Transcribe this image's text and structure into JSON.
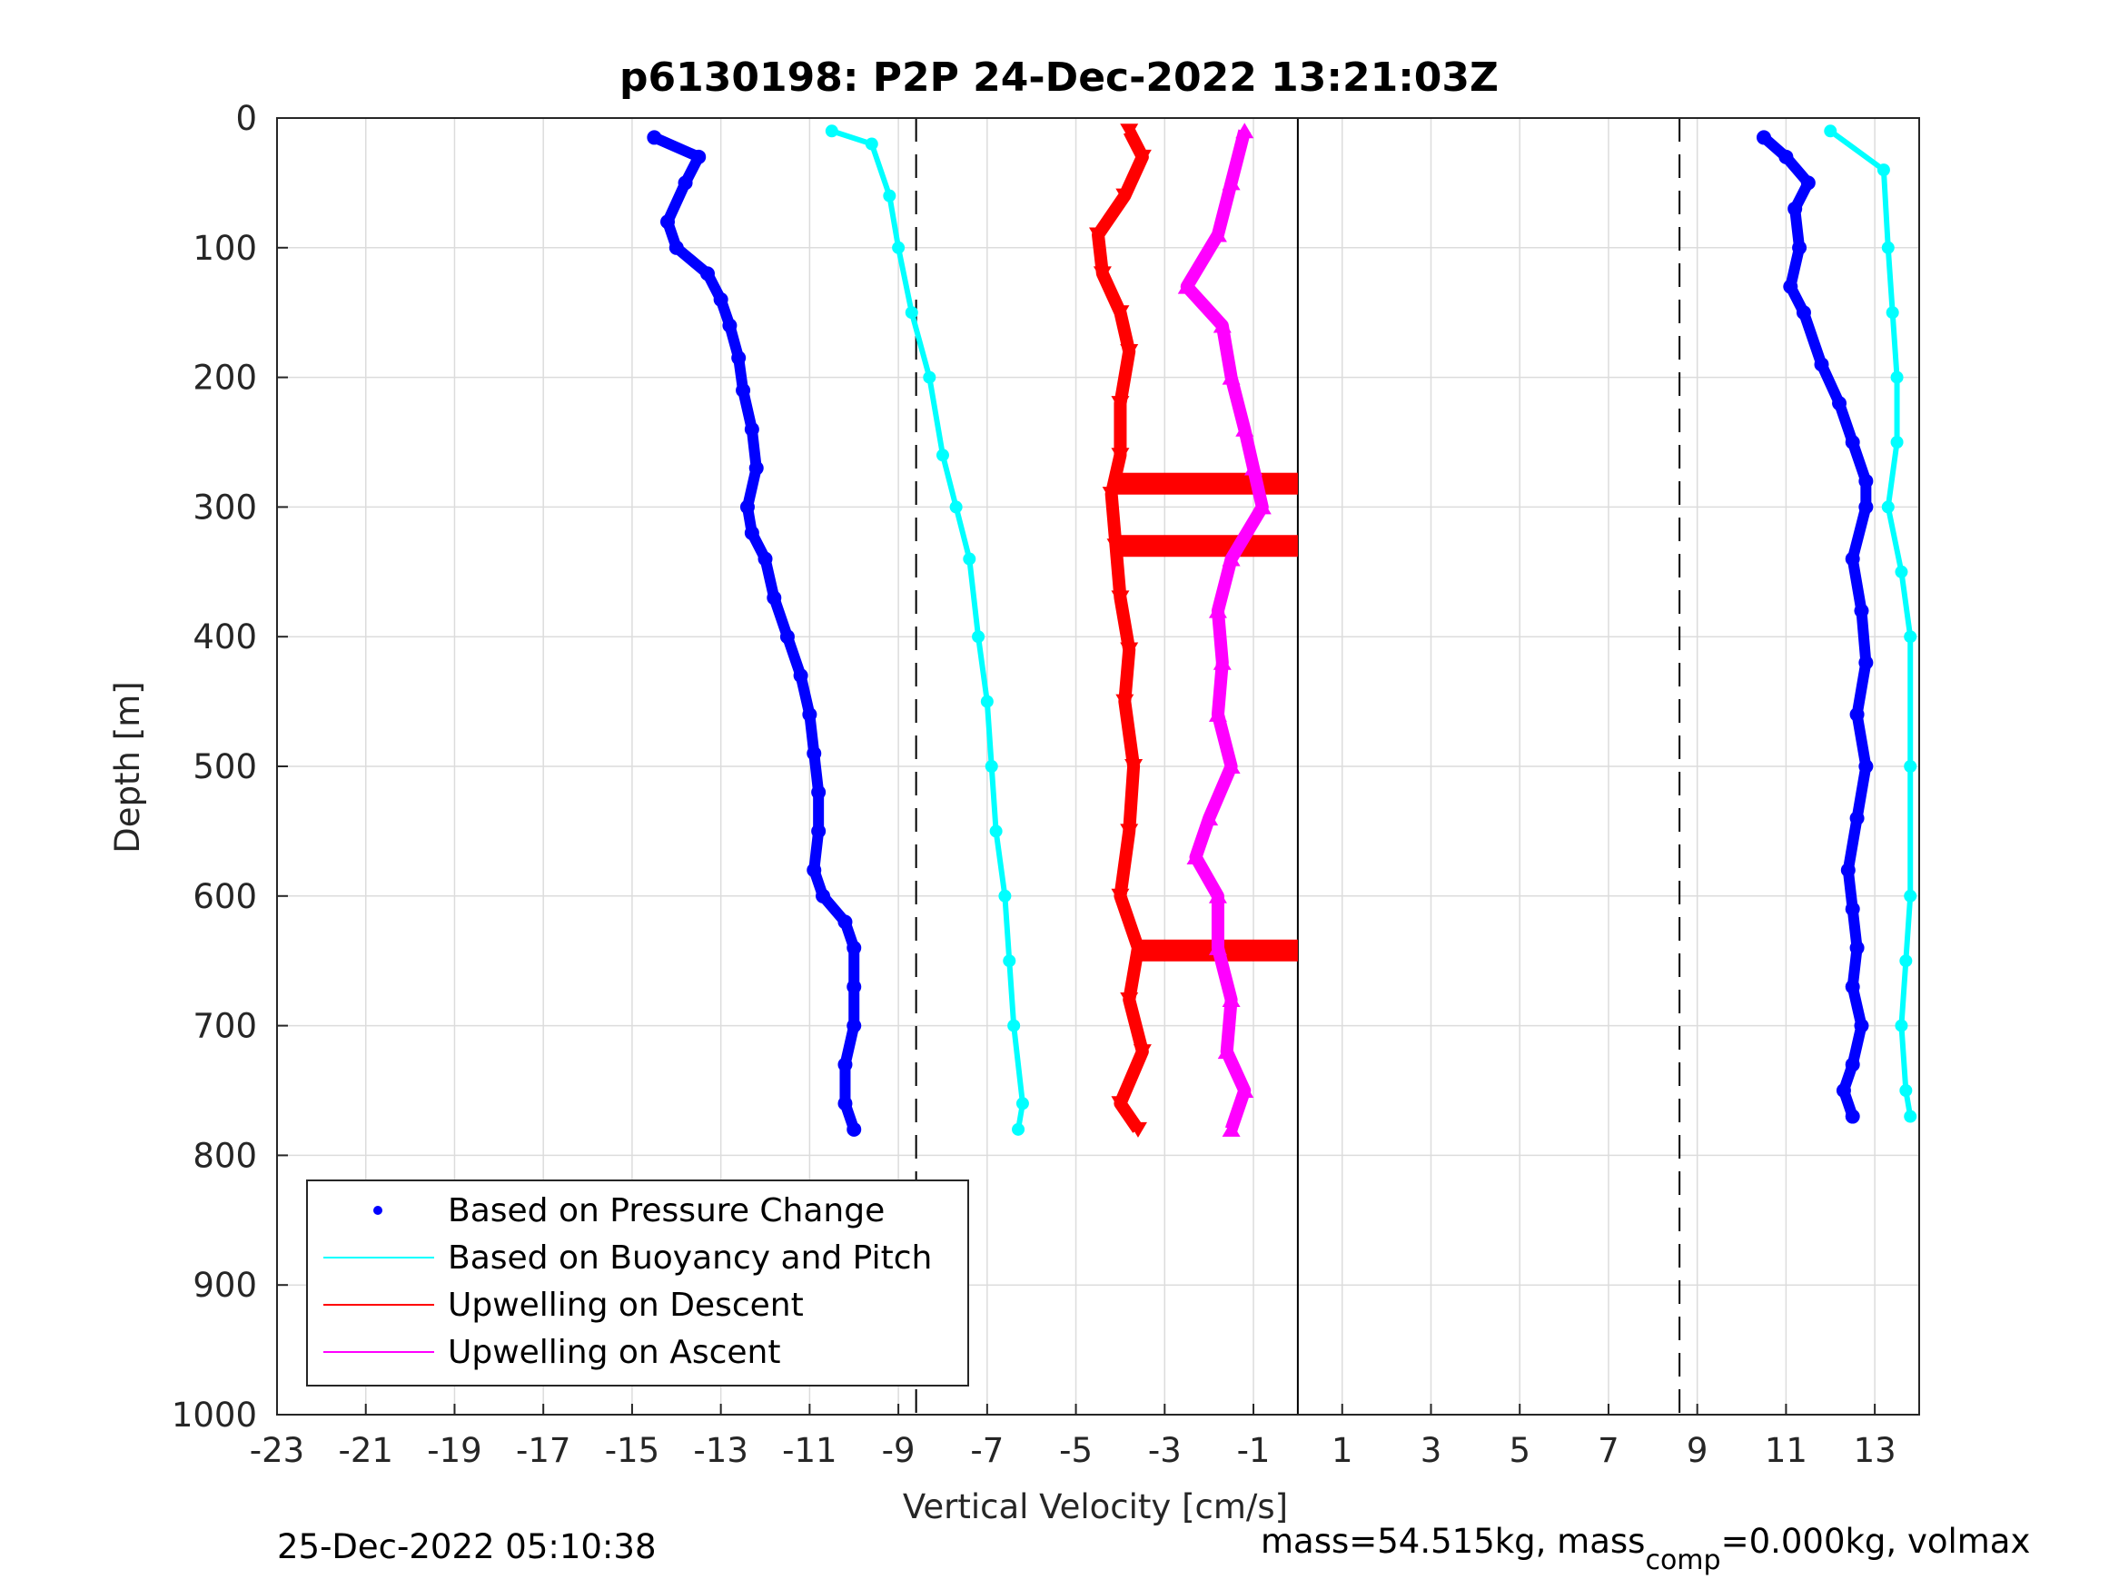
{
  "chart_data": {
    "type": "scatter",
    "title": "p6130198: P2P 24-Dec-2022 13:21:03Z",
    "xlabel": "Vertical Velocity [cm/s]",
    "ylabel": "Depth [m]",
    "xlim": [
      -23,
      14
    ],
    "ylim": [
      0,
      1000
    ],
    "y_reversed": true,
    "grid": true,
    "x_ticks": [
      "-23",
      "-21",
      "-19",
      "-17",
      "-15",
      "-13",
      "-11",
      "-9",
      "-7",
      "-5",
      "-3",
      "-1",
      "1",
      "3",
      "5",
      "7",
      "9",
      "11",
      "13"
    ],
    "y_ticks": [
      "0",
      "100",
      "200",
      "300",
      "400",
      "500",
      "600",
      "700",
      "800",
      "900",
      "1000"
    ],
    "vertical_lines": [
      {
        "x": -8.6,
        "style": "dashed",
        "color": "#000000"
      },
      {
        "x": 8.6,
        "style": "dashed",
        "color": "#000000"
      },
      {
        "x": 0,
        "style": "solid",
        "color": "#000000"
      }
    ],
    "legend_position": "bottom-left",
    "legend": [
      {
        "label": "Based on Pressure Change",
        "color": "#0000ff",
        "marker": "dot"
      },
      {
        "label": "Based on Buoyancy and Pitch",
        "color": "#00ffff",
        "marker": "line"
      },
      {
        "label": "Upwelling on Descent",
        "color": "#ff0000",
        "marker": "line"
      },
      {
        "label": "Upwelling on Ascent",
        "color": "#ff00ff",
        "marker": "line"
      }
    ],
    "series": [
      {
        "name": "Based on Pressure Change",
        "color": "#0000ff",
        "profile": "descent",
        "points": [
          [
            -14.5,
            15
          ],
          [
            -13.5,
            30
          ],
          [
            -13.8,
            50
          ],
          [
            -14.2,
            80
          ],
          [
            -14,
            100
          ],
          [
            -13.3,
            120
          ],
          [
            -13,
            140
          ],
          [
            -12.8,
            160
          ],
          [
            -12.6,
            185
          ],
          [
            -12.5,
            210
          ],
          [
            -12.3,
            240
          ],
          [
            -12.2,
            270
          ],
          [
            -12.4,
            300
          ],
          [
            -12.3,
            320
          ],
          [
            -12,
            340
          ],
          [
            -11.8,
            370
          ],
          [
            -11.5,
            400
          ],
          [
            -11.2,
            430
          ],
          [
            -11,
            460
          ],
          [
            -10.9,
            490
          ],
          [
            -10.8,
            520
          ],
          [
            -10.8,
            550
          ],
          [
            -10.9,
            580
          ],
          [
            -10.7,
            600
          ],
          [
            -10.2,
            620
          ],
          [
            -10,
            640
          ],
          [
            -10,
            670
          ],
          [
            -10,
            700
          ],
          [
            -10.2,
            730
          ],
          [
            -10.2,
            760
          ],
          [
            -10,
            780
          ]
        ]
      },
      {
        "name": "Based on Pressure Change",
        "color": "#0000ff",
        "profile": "ascent",
        "points": [
          [
            10.5,
            15
          ],
          [
            11,
            30
          ],
          [
            11.5,
            50
          ],
          [
            11.2,
            70
          ],
          [
            11.3,
            100
          ],
          [
            11.1,
            130
          ],
          [
            11.4,
            150
          ],
          [
            11.8,
            190
          ],
          [
            12.2,
            220
          ],
          [
            12.5,
            250
          ],
          [
            12.8,
            280
          ],
          [
            12.8,
            300
          ],
          [
            12.5,
            340
          ],
          [
            12.7,
            380
          ],
          [
            12.8,
            420
          ],
          [
            12.6,
            460
          ],
          [
            12.8,
            500
          ],
          [
            12.6,
            540
          ],
          [
            12.4,
            580
          ],
          [
            12.5,
            610
          ],
          [
            12.6,
            640
          ],
          [
            12.5,
            670
          ],
          [
            12.7,
            700
          ],
          [
            12.5,
            730
          ],
          [
            12.3,
            750
          ],
          [
            12.5,
            770
          ]
        ]
      },
      {
        "name": "Based on Buoyancy and Pitch",
        "color": "#00ffff",
        "profile": "descent",
        "points": [
          [
            -10.5,
            10
          ],
          [
            -9.6,
            20
          ],
          [
            -9.2,
            60
          ],
          [
            -9,
            100
          ],
          [
            -8.7,
            150
          ],
          [
            -8.3,
            200
          ],
          [
            -8,
            260
          ],
          [
            -7.7,
            300
          ],
          [
            -7.4,
            340
          ],
          [
            -7.2,
            400
          ],
          [
            -7,
            450
          ],
          [
            -6.9,
            500
          ],
          [
            -6.8,
            550
          ],
          [
            -6.6,
            600
          ],
          [
            -6.5,
            650
          ],
          [
            -6.4,
            700
          ],
          [
            -6.2,
            760
          ],
          [
            -6.3,
            780
          ]
        ]
      },
      {
        "name": "Based on Buoyancy and Pitch",
        "color": "#00ffff",
        "profile": "ascent",
        "points": [
          [
            12,
            10
          ],
          [
            13.2,
            40
          ],
          [
            13.3,
            100
          ],
          [
            13.4,
            150
          ],
          [
            13.5,
            200
          ],
          [
            13.5,
            250
          ],
          [
            13.3,
            300
          ],
          [
            13.6,
            350
          ],
          [
            13.8,
            400
          ],
          [
            13.8,
            500
          ],
          [
            13.8,
            600
          ],
          [
            13.7,
            650
          ],
          [
            13.6,
            700
          ],
          [
            13.7,
            750
          ],
          [
            13.8,
            770
          ]
        ]
      },
      {
        "name": "Upwelling on Descent",
        "color": "#ff0000",
        "points": [
          [
            -3.8,
            10
          ],
          [
            -3.5,
            30
          ],
          [
            -3.9,
            60
          ],
          [
            -4.5,
            90
          ],
          [
            -4.4,
            120
          ],
          [
            -4,
            150
          ],
          [
            -3.8,
            180
          ],
          [
            -4,
            220
          ],
          [
            -4,
            260
          ],
          [
            -4.2,
            290
          ],
          [
            -4.1,
            330
          ],
          [
            -4,
            370
          ],
          [
            -3.8,
            410
          ],
          [
            -3.9,
            450
          ],
          [
            -3.7,
            500
          ],
          [
            -3.8,
            550
          ],
          [
            -4,
            600
          ],
          [
            -3.6,
            640
          ],
          [
            -3.8,
            680
          ],
          [
            -3.5,
            720
          ],
          [
            -4,
            760
          ],
          [
            -3.6,
            780
          ]
        ]
      },
      {
        "name": "Upwelling on Ascent",
        "color": "#ff00ff",
        "points": [
          [
            -1.2,
            10
          ],
          [
            -1.5,
            50
          ],
          [
            -1.8,
            90
          ],
          [
            -2.5,
            130
          ],
          [
            -1.7,
            160
          ],
          [
            -1.5,
            200
          ],
          [
            -1.2,
            240
          ],
          [
            -1,
            270
          ],
          [
            -0.8,
            300
          ],
          [
            -1.5,
            340
          ],
          [
            -1.8,
            380
          ],
          [
            -1.7,
            420
          ],
          [
            -1.8,
            460
          ],
          [
            -1.5,
            500
          ],
          [
            -2,
            540
          ],
          [
            -2.3,
            570
          ],
          [
            -1.8,
            600
          ],
          [
            -1.8,
            640
          ],
          [
            -1.5,
            680
          ],
          [
            -1.6,
            720
          ],
          [
            -1.2,
            750
          ],
          [
            -1.5,
            780
          ]
        ]
      }
    ],
    "horizontal_bands": [
      {
        "depth": 282,
        "x_from": -4.2,
        "x_to": 0,
        "color": "#ff0000"
      },
      {
        "depth": 330,
        "x_from": -4.1,
        "x_to": 0,
        "color": "#ff0000"
      },
      {
        "depth": 642,
        "x_from": -3.7,
        "x_to": 0,
        "color": "#ff0000"
      }
    ]
  },
  "footer": {
    "timestamp": "25-Dec-2022 05:10:38",
    "mass_prefix": "mass=54.515kg, mass",
    "mass_sub": "comp",
    "mass_suffix": "=0.000kg, volmax"
  }
}
